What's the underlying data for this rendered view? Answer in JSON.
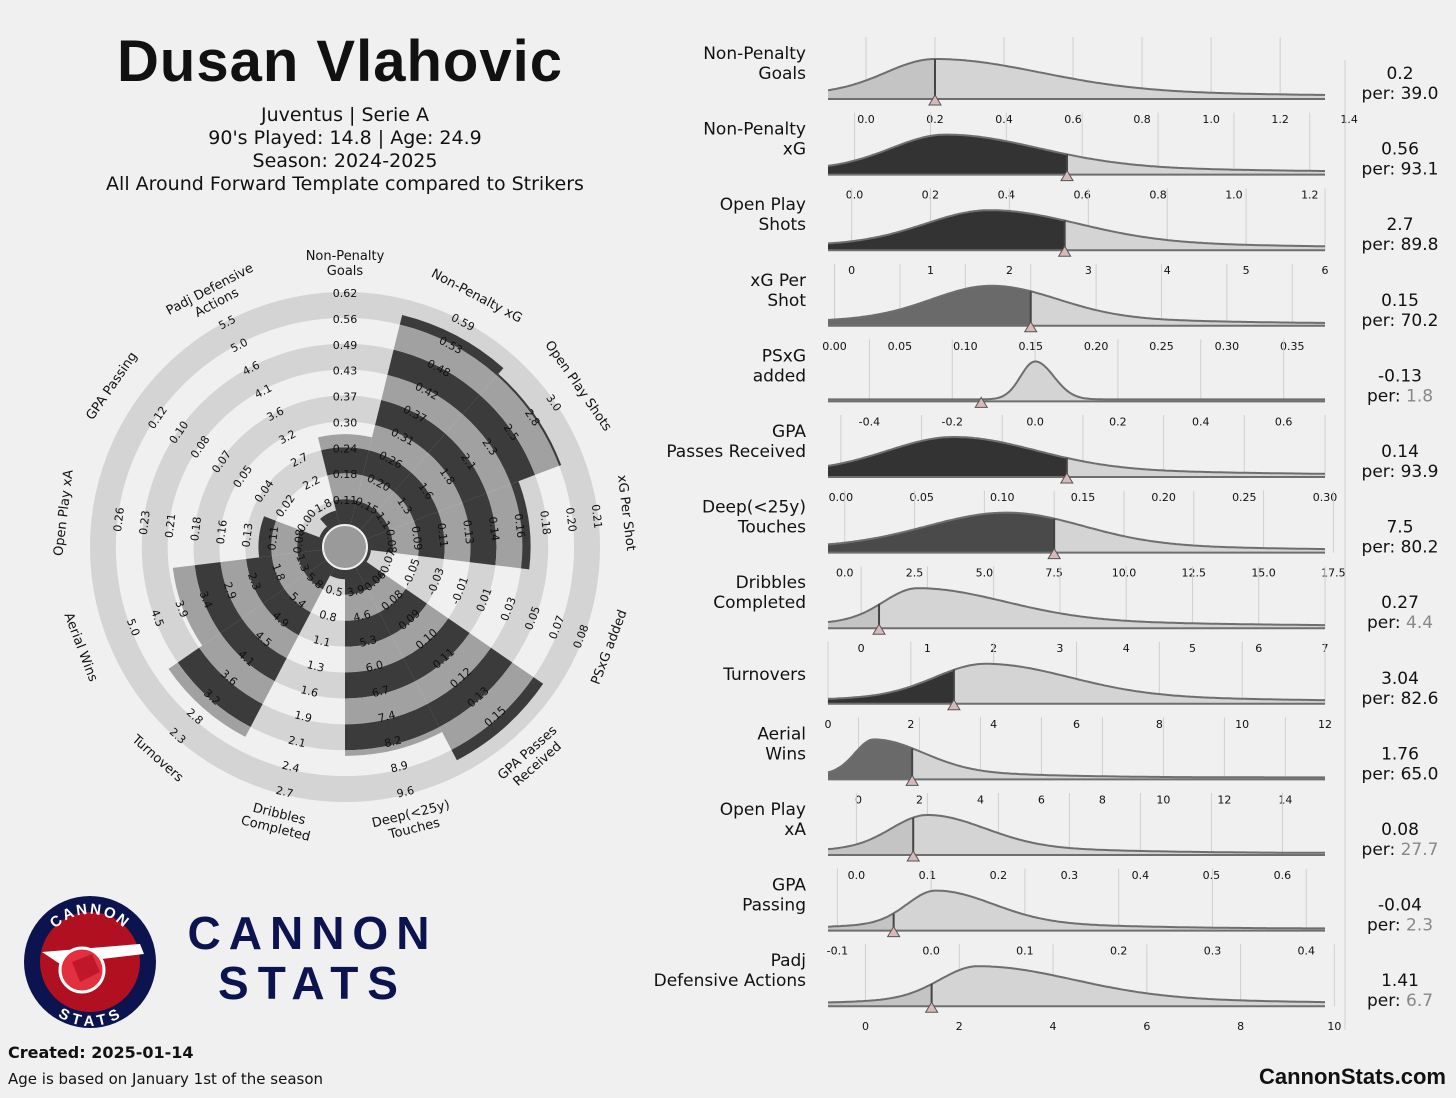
{
  "header": {
    "player": "Dusan Vlahovic",
    "team_line": "Juventus | Serie A",
    "played_line": "90's Played: 14.8 | Age: 24.9",
    "season_line": "Season: 2024-2025",
    "template_line": "All Around Forward Template compared to Strikers"
  },
  "brand": {
    "line1": "CANNON",
    "line2": "STATS",
    "badge_top": "CANNON",
    "badge_bottom": "STATS"
  },
  "footer": {
    "created": "Created: 2025-01-14",
    "note": "Age is based on January 1st of the season",
    "site": "CannonStats.com"
  },
  "colors": {
    "background": "#f0f0f0",
    "ring": "#d4d4d4",
    "dark": "#333333",
    "mid": "#666666",
    "light": "#d0d0d0",
    "brand_navy": "#0c1450",
    "brand_red": "#b01020"
  },
  "chart_data": [
    {
      "type": "radar",
      "metrics": [
        {
          "label": [
            "Non-Penalty",
            "Goals"
          ],
          "percentile": 39.0,
          "ticks": [
            "0.11",
            "0.18",
            "0.24",
            "0.30",
            "0.37",
            "0.43",
            "0.49",
            "0.56",
            "0.62"
          ]
        },
        {
          "label": [
            "Non-Penalty xG"
          ],
          "percentile": 93.1,
          "ticks": [
            "0.15",
            "0.20",
            "0.26",
            "0.31",
            "0.37",
            "0.42",
            "0.48",
            "0.53",
            "0.59"
          ]
        },
        {
          "label": [
            "Open Play Shots"
          ],
          "percentile": 89.8,
          "ticks": [
            "1.1",
            "1.3",
            "1.6",
            "1.8",
            "2.1",
            "2.3",
            "2.5",
            "2.8",
            "3.0"
          ]
        },
        {
          "label": [
            "xG Per Shot"
          ],
          "percentile": 70.2,
          "ticks": [
            "0.08",
            "0.09",
            "0.11",
            "0.13",
            "0.14",
            "0.16",
            "0.18",
            "0.20",
            "0.21"
          ]
        },
        {
          "label": [
            "PSxG added"
          ],
          "percentile": 1.8,
          "ticks": [
            "-0.07",
            "-0.05",
            "-0.03",
            "-0.01",
            "0.01",
            "0.03",
            "0.05",
            "0.07",
            "0.08"
          ]
        },
        {
          "label": [
            "GPA Passes",
            "Received"
          ],
          "percentile": 93.9,
          "ticks": [
            "0.06",
            "0.08",
            "0.09",
            "0.10",
            "0.11",
            "0.12",
            "0.13",
            "0.15"
          ]
        },
        {
          "label": [
            "Deep(<25y)",
            "Touches"
          ],
          "percentile": 80.2,
          "ticks": [
            "3.9",
            "4.6",
            "5.3",
            "6.0",
            "6.7",
            "7.4",
            "8.2",
            "8.9",
            "9.6"
          ]
        },
        {
          "label": [
            "Dribbles",
            "Completed"
          ],
          "percentile": 4.4,
          "ticks": [
            "0.5",
            "0.8",
            "1.1",
            "1.3",
            "1.6",
            "1.9",
            "2.1",
            "2.4",
            "2.7"
          ]
        },
        {
          "label": [
            "Turnovers"
          ],
          "percentile": 82.6,
          "ticks": [
            "5.8",
            "5.4",
            "4.9",
            "4.5",
            "4.1",
            "3.6",
            "3.2",
            "2.8",
            "2.3"
          ]
        },
        {
          "label": [
            "Aerial Wins"
          ],
          "percentile": 65.0,
          "ticks": [
            "1.3",
            "1.8",
            "2.3",
            "2.9",
            "3.4",
            "3.9",
            "4.5",
            "5.0"
          ]
        },
        {
          "label": [
            "Open Play xA"
          ],
          "percentile": 27.7,
          "ticks": [
            "0.08",
            "0.11",
            "0.13",
            "0.16",
            "0.18",
            "0.21",
            "0.23",
            "0.26"
          ]
        },
        {
          "label": [
            "GPA Passing"
          ],
          "percentile": 2.3,
          "ticks": [
            "0.00",
            "0.02",
            "0.04",
            "0.05",
            "0.07",
            "0.08",
            "0.10",
            "0.12"
          ]
        },
        {
          "label": [
            "Padj Defensive",
            "Actions"
          ],
          "percentile": 6.7,
          "ticks": [
            "1.8",
            "2.2",
            "2.7",
            "3.2",
            "3.6",
            "4.1",
            "4.6",
            "5.0",
            "5.5"
          ]
        }
      ],
      "center_ticks": [
        "-0.01",
        "0.07",
        "0.5",
        "0.7",
        "0.06",
        "0.00",
        "0.11",
        "0.05",
        "0.09"
      ]
    },
    {
      "type": "area",
      "distributions": [
        {
          "label": [
            "Non-Penalty",
            "Goals"
          ],
          "value": "0.2",
          "per": "39.0",
          "x": 0.2,
          "xmin": -0.11,
          "xmax": 1.33,
          "ticks": [
            "0.0",
            "0.2",
            "0.4",
            "0.6",
            "0.8",
            "1.0",
            "1.2",
            "1.4"
          ],
          "tick_vals": [
            0,
            0.2,
            0.4,
            0.6,
            0.8,
            1.0,
            1.2,
            1.4
          ],
          "mode": 0.2,
          "lw": 0.14,
          "rw": 0.3,
          "shade": "light"
        },
        {
          "label": [
            "Non-Penalty",
            "xG"
          ],
          "value": "0.56",
          "per": "93.1",
          "x": 0.56,
          "xmin": -0.07,
          "xmax": 1.24,
          "ticks": [
            "0.0",
            "0.2",
            "0.4",
            "0.6",
            "0.8",
            "1.0",
            "1.2"
          ],
          "tick_vals": [
            0,
            0.2,
            0.4,
            0.6,
            0.8,
            1.0,
            1.2
          ],
          "mode": 0.24,
          "lw": 0.14,
          "rw": 0.24,
          "shade": "dark"
        },
        {
          "label": [
            "Open Play",
            "Shots"
          ],
          "value": "2.7",
          "per": "89.8",
          "x": 2.7,
          "xmin": -0.3,
          "xmax": 6.0,
          "ticks": [
            "0",
            "1",
            "2",
            "3",
            "4",
            "5",
            "6"
          ],
          "tick_vals": [
            0,
            1,
            2,
            3,
            4,
            5,
            6
          ],
          "mode": 1.75,
          "lw": 0.8,
          "rw": 1.1,
          "shade": "dark"
        },
        {
          "label": [
            "xG Per",
            "Shot"
          ],
          "value": "0.15",
          "per": "70.2",
          "x": 0.15,
          "xmin": -0.005,
          "xmax": 0.375,
          "ticks": [
            "0.00",
            "0.05",
            "0.10",
            "0.15",
            "0.20",
            "0.25",
            "0.30",
            "0.35"
          ],
          "tick_vals": [
            0,
            0.05,
            0.1,
            0.15,
            0.2,
            0.25,
            0.3,
            0.35
          ],
          "mode": 0.12,
          "lw": 0.045,
          "rw": 0.05,
          "shade": "mid"
        },
        {
          "label": [
            "PSxG",
            "added"
          ],
          "value": "-0.13",
          "per": "1.8",
          "x": -0.13,
          "xmin": -0.5,
          "xmax": 0.7,
          "ticks": [
            "-0.4",
            "-0.2",
            "0.0",
            "0.2",
            "0.4",
            "0.6"
          ],
          "tick_vals": [
            -0.4,
            -0.2,
            0,
            0.2,
            0.4,
            0.6
          ],
          "mode": 0.0,
          "lw": 0.035,
          "rw": 0.045,
          "shade": "light",
          "peaky": true
        },
        {
          "label": [
            "GPA",
            "Passes Received"
          ],
          "value": "0.14",
          "per": "93.9",
          "x": 0.14,
          "xmin": -0.008,
          "xmax": 0.3,
          "ticks": [
            "0.00",
            "0.05",
            "0.10",
            "0.15",
            "0.20",
            "0.25",
            "0.30"
          ],
          "tick_vals": [
            0,
            0.05,
            0.1,
            0.15,
            0.2,
            0.25,
            0.3
          ],
          "mode": 0.07,
          "lw": 0.04,
          "rw": 0.05,
          "shade": "dark"
        },
        {
          "label": [
            "Deep(<25y)",
            "Touches"
          ],
          "value": "7.5",
          "per": "80.2",
          "x": 7.5,
          "xmin": -0.6,
          "xmax": 17.2,
          "ticks": [
            "0.0",
            "2.5",
            "5.0",
            "7.5",
            "10.0",
            "12.5",
            "15.0",
            "17.5"
          ],
          "tick_vals": [
            0,
            2.5,
            5,
            7.5,
            10,
            12.5,
            15,
            17.5
          ],
          "mode": 5.8,
          "lw": 2.8,
          "rw": 2.7,
          "shade": "darkmid"
        },
        {
          "label": [
            "Dribbles",
            "Completed"
          ],
          "value": "0.27",
          "per": "4.4",
          "x": 0.27,
          "xmin": -0.5,
          "xmax": 7.0,
          "ticks": [
            "0",
            "1",
            "2",
            "3",
            "4",
            "5",
            "6",
            "7"
          ],
          "tick_vals": [
            0,
            1,
            2,
            3,
            4,
            5,
            6,
            7
          ],
          "mode": 0.85,
          "lw": 0.5,
          "rw": 1.3,
          "shade": "light"
        },
        {
          "label": [
            "Turnovers"
          ],
          "value": "3.04",
          "per": "82.6",
          "x": 3.04,
          "xmin": 0.0,
          "xmax": 12.0,
          "ticks": [
            "0",
            "2",
            "4",
            "6",
            "8",
            "10",
            "12"
          ],
          "tick_vals": [
            0,
            2,
            4,
            6,
            8,
            10,
            12
          ],
          "mode": 3.8,
          "lw": 1.2,
          "rw": 2.0,
          "shade": "light_left_dark"
        },
        {
          "label": [
            "Aerial",
            "Wins"
          ],
          "value": "1.76",
          "per": "65.0",
          "x": 1.76,
          "xmin": -1.0,
          "xmax": 15.3,
          "ticks": [
            "0",
            "2",
            "4",
            "6",
            "8",
            "10",
            "12",
            "14"
          ],
          "tick_vals": [
            0,
            2,
            4,
            6,
            8,
            10,
            12,
            14
          ],
          "mode": 0.5,
          "lw": 0.6,
          "rw": 1.6,
          "shade": "mid"
        },
        {
          "label": [
            "Open Play",
            "xA"
          ],
          "value": "0.08",
          "per": "27.7",
          "x": 0.08,
          "xmin": -0.04,
          "xmax": 0.66,
          "ticks": [
            "0.0",
            "0.1",
            "0.2",
            "0.3",
            "0.4",
            "0.5",
            "0.6"
          ],
          "tick_vals": [
            0,
            0.1,
            0.2,
            0.3,
            0.4,
            0.5,
            0.6
          ],
          "mode": 0.1,
          "lw": 0.05,
          "rw": 0.08,
          "shade": "light"
        },
        {
          "label": [
            "GPA",
            "Passing"
          ],
          "value": "-0.04",
          "per": "2.3",
          "x": -0.04,
          "xmin": -0.11,
          "xmax": 0.42,
          "ticks": [
            "-0.1",
            "0.0",
            "0.1",
            "0.2",
            "0.3",
            "0.4"
          ],
          "tick_vals": [
            -0.1,
            0,
            0.1,
            0.2,
            0.3,
            0.4
          ],
          "mode": 0.005,
          "lw": 0.03,
          "rw": 0.06,
          "shade": "light"
        },
        {
          "label": [
            "Padj",
            "Defensive Actions"
          ],
          "value": "1.41",
          "per": "6.7",
          "x": 1.41,
          "xmin": -0.8,
          "xmax": 9.8,
          "ticks": [
            "0",
            "2",
            "4",
            "6",
            "8",
            "10"
          ],
          "tick_vals": [
            0,
            2,
            4,
            6,
            8,
            10
          ],
          "mode": 2.4,
          "lw": 0.8,
          "rw": 2.0,
          "shade": "light"
        }
      ]
    }
  ]
}
